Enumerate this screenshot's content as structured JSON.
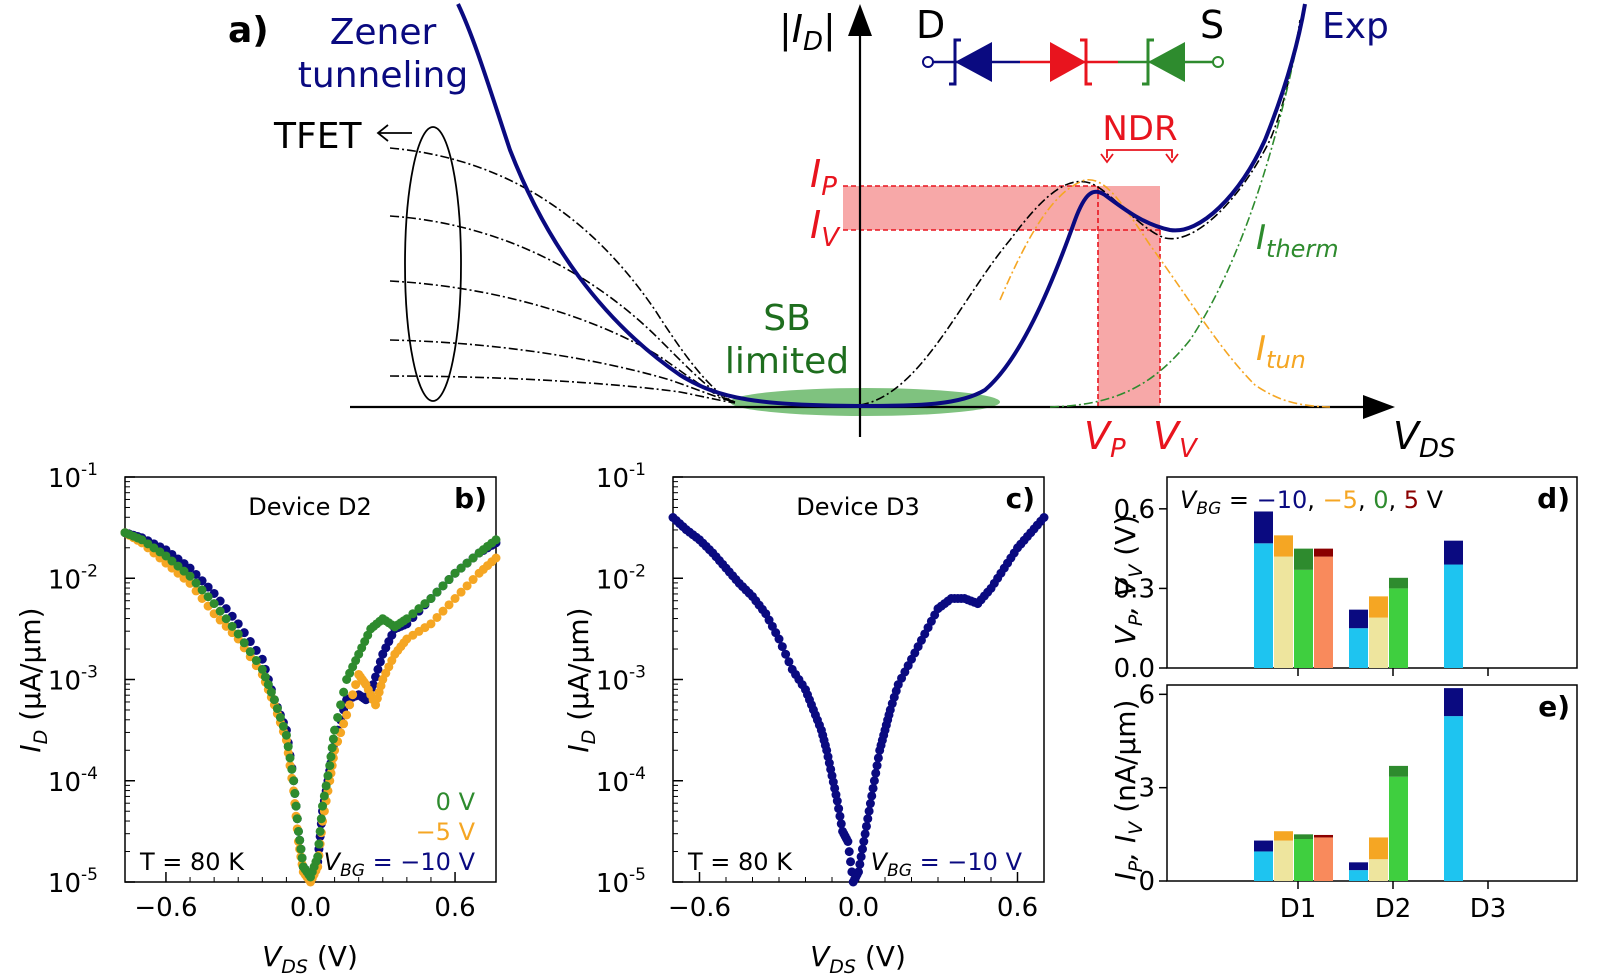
{
  "colors": {
    "navy": "#0a0a80",
    "orange": "#f5a623",
    "green": "#2e8b2e",
    "darkred": "#8b0000",
    "red": "#e8141e",
    "pink": "#f7a8a8",
    "lightgreen": "#6dbf6d",
    "lightblue": "#1ec4f0",
    "khaki": "#eee59e",
    "brightgreen": "#3fcf3f",
    "salmon": "#f98a5c"
  },
  "panel_a": {
    "label": "a)",
    "y_axis_label": "|I",
    "y_axis_sub": "D",
    "x_axis_label": "V",
    "x_axis_sub": "DS",
    "zener_line1": "Zener",
    "zener_line2": "tunneling",
    "tfet": "TFET",
    "sb_line1": "SB",
    "sb_line2": "limited",
    "ndr": "NDR",
    "ip": "I",
    "ip_sub": "P",
    "iv": "I",
    "iv_sub": "V",
    "vp": "V",
    "vp_sub": "P",
    "vv": "V",
    "vv_sub": "V",
    "itherm": "I",
    "itherm_sub": "therm",
    "itun": "I",
    "itun_sub": "tun",
    "exp": "Exp",
    "drain": "D",
    "source": "S"
  },
  "chart_data": [
    {
      "id": "b",
      "type": "scatter",
      "label": "b)",
      "title": "Device D2",
      "xlabel": "V",
      "xlabel_sub": "DS",
      "xlabel_unit": " (V)",
      "ylabel": "I",
      "ylabel_sub": "D",
      "ylabel_unit": " (μA/μm)",
      "xlim": [
        -0.77,
        0.77
      ],
      "ylim_log10": [
        -5,
        -1
      ],
      "xticks": [
        "-0.6",
        "0.0",
        "0.6"
      ],
      "yticks": [
        "10",
        "10",
        "10",
        "10",
        "10"
      ],
      "yticks_exp": [
        "-5",
        "-4",
        "-3",
        "-2",
        "-1"
      ],
      "temperature_label": "T = 80 K",
      "legend": {
        "v0": "0 V",
        "v5": "−5 V",
        "vbg_prefix": "V",
        "vbg_sub": "BG",
        "v10": " = −10 V"
      },
      "series": [
        {
          "name": "−10 V",
          "color": "#0a0a80",
          "x": [
            -0.77,
            -0.7,
            -0.6,
            -0.5,
            -0.4,
            -0.3,
            -0.2,
            -0.15,
            -0.1,
            -0.07,
            -0.05,
            -0.03,
            0.0,
            0.03,
            0.05,
            0.08,
            0.1,
            0.15,
            0.2,
            0.23,
            0.26,
            0.3,
            0.35,
            0.4,
            0.5,
            0.6,
            0.7,
            0.77
          ],
          "logy": [
            -1.55,
            -1.6,
            -1.72,
            -1.9,
            -2.15,
            -2.45,
            -2.8,
            -3.2,
            -3.5,
            -4.0,
            -4.5,
            -4.85,
            -4.95,
            -4.8,
            -4.3,
            -3.9,
            -3.6,
            -3.2,
            -3.15,
            -3.2,
            -3.05,
            -2.75,
            -2.5,
            -2.45,
            -2.2,
            -1.95,
            -1.75,
            -1.65
          ]
        },
        {
          "name": "−5 V",
          "color": "#f5a623",
          "x": [
            -0.77,
            -0.7,
            -0.6,
            -0.5,
            -0.4,
            -0.3,
            -0.2,
            -0.15,
            -0.1,
            -0.07,
            -0.05,
            -0.03,
            0.0,
            0.03,
            0.05,
            0.08,
            0.1,
            0.15,
            0.2,
            0.23,
            0.27,
            0.3,
            0.35,
            0.4,
            0.5,
            0.6,
            0.7,
            0.77
          ],
          "logy": [
            -1.55,
            -1.65,
            -1.85,
            -2.05,
            -2.35,
            -2.6,
            -2.95,
            -3.25,
            -3.6,
            -4.1,
            -4.6,
            -4.9,
            -5.0,
            -4.85,
            -4.4,
            -4.0,
            -3.7,
            -3.35,
            -2.95,
            -3.05,
            -3.25,
            -3.0,
            -2.75,
            -2.6,
            -2.45,
            -2.2,
            -1.95,
            -1.8
          ]
        },
        {
          "name": "0 V",
          "color": "#2e8b2e",
          "x": [
            -0.77,
            -0.7,
            -0.6,
            -0.5,
            -0.4,
            -0.3,
            -0.2,
            -0.15,
            -0.1,
            -0.07,
            -0.05,
            -0.03,
            0.0,
            0.03,
            0.05,
            0.08,
            0.1,
            0.15,
            0.2,
            0.25,
            0.3,
            0.35,
            0.4,
            0.5,
            0.6,
            0.7,
            0.77
          ],
          "logy": [
            -1.55,
            -1.62,
            -1.78,
            -1.98,
            -2.25,
            -2.55,
            -2.9,
            -3.2,
            -3.55,
            -4.0,
            -4.5,
            -4.85,
            -4.95,
            -4.75,
            -4.25,
            -3.85,
            -3.5,
            -3.0,
            -2.75,
            -2.5,
            -2.4,
            -2.48,
            -2.4,
            -2.2,
            -1.95,
            -1.75,
            -1.62
          ]
        }
      ]
    },
    {
      "id": "c",
      "type": "scatter",
      "label": "c)",
      "title": "Device D3",
      "xlabel": "V",
      "xlabel_sub": "DS",
      "xlabel_unit": " (V)",
      "ylabel": "I",
      "ylabel_sub": "D",
      "ylabel_unit": " (μA/μm)",
      "xlim": [
        -0.7,
        0.7
      ],
      "ylim_log10": [
        -5,
        -1
      ],
      "xticks": [
        "-0.6",
        "0.0",
        "0.6"
      ],
      "yticks": [
        "10",
        "10",
        "10",
        "10",
        "10"
      ],
      "yticks_exp": [
        "-5",
        "-4",
        "-3",
        "-2",
        "-1"
      ],
      "temperature_label": "T = 80 K",
      "legend": {
        "vbg_prefix": "V",
        "vbg_sub": "BG",
        "v10": " = −10 V"
      },
      "series": [
        {
          "name": "−10 V",
          "color": "#0a0a80",
          "x": [
            -0.7,
            -0.65,
            -0.6,
            -0.55,
            -0.5,
            -0.45,
            -0.4,
            -0.35,
            -0.3,
            -0.25,
            -0.2,
            -0.17,
            -0.14,
            -0.12,
            -0.1,
            -0.08,
            -0.06,
            -0.04,
            -0.02,
            0.0,
            0.02,
            0.04,
            0.06,
            0.08,
            0.1,
            0.12,
            0.15,
            0.2,
            0.25,
            0.3,
            0.35,
            0.4,
            0.45,
            0.5,
            0.55,
            0.6,
            0.65,
            0.7
          ],
          "logy": [
            -1.4,
            -1.52,
            -1.62,
            -1.75,
            -1.9,
            -2.05,
            -2.18,
            -2.35,
            -2.6,
            -2.9,
            -3.1,
            -3.3,
            -3.5,
            -3.7,
            -3.95,
            -4.2,
            -4.5,
            -4.6,
            -5.0,
            -4.9,
            -4.6,
            -4.3,
            -4.0,
            -3.7,
            -3.5,
            -3.3,
            -3.05,
            -2.8,
            -2.55,
            -2.3,
            -2.2,
            -2.2,
            -2.25,
            -2.1,
            -1.9,
            -1.7,
            -1.55,
            -1.4
          ]
        }
      ]
    },
    {
      "id": "d",
      "type": "bar",
      "label": "d)",
      "ylabel": "V",
      "ylabel_sub1": "P",
      "ylabel_mid": ", V",
      "ylabel_sub2": "V",
      "ylabel_unit": " (V)",
      "ylim": [
        0,
        0.72
      ],
      "yticks": [
        "0.0",
        "0.3",
        "0.6"
      ],
      "legend_prefix": "V",
      "legend_sub": "BG",
      "legend_eq": " = ",
      "legend_items": [
        {
          "text": "−10",
          "color": "#0a0a80"
        },
        {
          "text": ", ",
          "color": "#000000"
        },
        {
          "text": "−5",
          "color": "#f5a623"
        },
        {
          "text": ", ",
          "color": "#000000"
        },
        {
          "text": "0",
          "color": "#2e8b2e"
        },
        {
          "text": ", ",
          "color": "#000000"
        },
        {
          "text": "5",
          "color": "#8b0000"
        },
        {
          "text": " V",
          "color": "#000000"
        }
      ],
      "categories": [
        "D1",
        "D2",
        "D3"
      ],
      "bars": [
        {
          "cat": 0,
          "slot": 0,
          "low": 0.47,
          "high": 0.59,
          "low_color": "#1ec4f0",
          "high_color": "#0a0a80"
        },
        {
          "cat": 0,
          "slot": 1,
          "low": 0.42,
          "high": 0.5,
          "low_color": "#eee59e",
          "high_color": "#f5a623"
        },
        {
          "cat": 0,
          "slot": 2,
          "low": 0.37,
          "high": 0.45,
          "low_color": "#3fcf3f",
          "high_color": "#2e8b2e"
        },
        {
          "cat": 0,
          "slot": 3,
          "low": 0.42,
          "high": 0.45,
          "low_color": "#f98a5c",
          "high_color": "#8b0000"
        },
        {
          "cat": 1,
          "slot": 0,
          "low": 0.15,
          "high": 0.22,
          "low_color": "#1ec4f0",
          "high_color": "#0a0a80"
        },
        {
          "cat": 1,
          "slot": 1,
          "low": 0.19,
          "high": 0.27,
          "low_color": "#eee59e",
          "high_color": "#f5a623"
        },
        {
          "cat": 1,
          "slot": 2,
          "low": 0.3,
          "high": 0.34,
          "low_color": "#3fcf3f",
          "high_color": "#2e8b2e"
        },
        {
          "cat": 2,
          "slot": 0,
          "low": 0.39,
          "high": 0.48,
          "low_color": "#1ec4f0",
          "high_color": "#0a0a80"
        }
      ]
    },
    {
      "id": "e",
      "type": "bar",
      "label": "e)",
      "ylabel": "I",
      "ylabel_sub1": "P",
      "ylabel_mid": ", I",
      "ylabel_sub2": "V",
      "ylabel_unit": " (nA/μm)",
      "ylim": [
        0,
        6.3
      ],
      "yticks": [
        "0",
        "3",
        "6"
      ],
      "categories": [
        "D1",
        "D2",
        "D3"
      ],
      "bars": [
        {
          "cat": 0,
          "slot": 0,
          "low": 0.95,
          "high": 1.3,
          "low_color": "#1ec4f0",
          "high_color": "#0a0a80"
        },
        {
          "cat": 0,
          "slot": 1,
          "low": 1.3,
          "high": 1.6,
          "low_color": "#eee59e",
          "high_color": "#f5a623"
        },
        {
          "cat": 0,
          "slot": 2,
          "low": 1.35,
          "high": 1.5,
          "low_color": "#3fcf3f",
          "high_color": "#2e8b2e"
        },
        {
          "cat": 0,
          "slot": 3,
          "low": 1.4,
          "high": 1.48,
          "low_color": "#f98a5c",
          "high_color": "#8b0000"
        },
        {
          "cat": 1,
          "slot": 0,
          "low": 0.35,
          "high": 0.6,
          "low_color": "#1ec4f0",
          "high_color": "#0a0a80"
        },
        {
          "cat": 1,
          "slot": 1,
          "low": 0.7,
          "high": 1.4,
          "low_color": "#eee59e",
          "high_color": "#f5a623"
        },
        {
          "cat": 1,
          "slot": 2,
          "low": 3.35,
          "high": 3.7,
          "low_color": "#3fcf3f",
          "high_color": "#2e8b2e"
        },
        {
          "cat": 2,
          "slot": 0,
          "low": 5.3,
          "high": 6.2,
          "low_color": "#1ec4f0",
          "high_color": "#0a0a80"
        }
      ]
    }
  ]
}
